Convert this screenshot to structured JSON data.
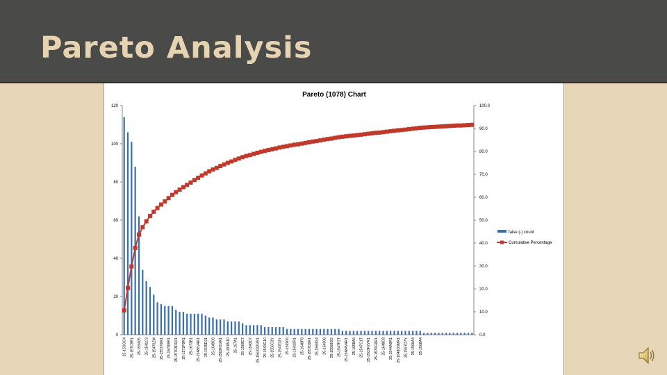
{
  "slide": {
    "title": "Pareto Analysis"
  },
  "colors": {
    "header_bg": "#4a4a49",
    "title_text": "#e6d3b1",
    "background": "#e7d6b8",
    "bar": "#3b6fb0",
    "cumulative": "#c0392b"
  },
  "icons": {
    "audio": "speaker-icon"
  },
  "chart_data": {
    "type": "bar",
    "title": "Pareto (1078) Chart",
    "ylim_left": [
      0,
      120
    ],
    "ylim_right": [
      0,
      100
    ],
    "left_ticks": [
      "0",
      "20",
      "40",
      "60",
      "80",
      "100",
      "120"
    ],
    "right_ticks": [
      "0.0",
      "10.0",
      "20.0",
      "30.0",
      "40.0",
      "50.0",
      "60.0",
      "70.0",
      "80.0",
      "90.0",
      "100.0"
    ],
    "grid": false,
    "legend_position": "right",
    "legend": [
      "false (-) count",
      "Cumulative Percentage"
    ],
    "category_labels": [
      "25-15SGC4",
      "25-157C9R1",
      "25-15S605",
      "25-1541C3",
      "25-15476ZM",
      "25-1557X6R1",
      "25-1578I9R1",
      "25-15703D1R1",
      "25-1572F9R1",
      "25-1673B1",
      "25-15486V4R1",
      "25-1539D11",
      "25-1649C8",
      "25-1563F2GR1",
      "25-153BI10",
      "25-157A1",
      "25-1569C7",
      "25-1543D7",
      "25-1563D2GR1",
      "25-1543G10",
      "25-1556C3Y",
      "25-1547D3Y",
      "25-156906",
      "25-15410R1",
      "25-1648F8",
      "25-1557D6R1",
      "25-1569G4",
      "25-164908",
      "25-15568SG",
      "25-1547F2T",
      "25-15484V4R1",
      "25-1658A6",
      "25-1547C1T",
      "25-1563F2YR1",
      "25-1570G9R1",
      "25-1648C8",
      "25-1544A9R1",
      "25-1548D3MR1",
      "25-1557D7Y",
      "25-1566A4",
      "25-1568A4"
    ],
    "label_every": 2,
    "series": [
      {
        "name": "false (-) count",
        "kind": "bar",
        "values": [
          114,
          106,
          101,
          88,
          62,
          34,
          28,
          25,
          21,
          17,
          16,
          15,
          15,
          15,
          13,
          12,
          12,
          11,
          11,
          11,
          11,
          11,
          10,
          9,
          9,
          8,
          8,
          8,
          7,
          7,
          7,
          7,
          6,
          5,
          5,
          5,
          5,
          5,
          4,
          4,
          4,
          4,
          4,
          4,
          3,
          3,
          3,
          3,
          3,
          3,
          3,
          3,
          3,
          3,
          3,
          3,
          3,
          3,
          3,
          2,
          2,
          2,
          2,
          2,
          2,
          2,
          2,
          2,
          2,
          2,
          2,
          2,
          2,
          2,
          2,
          2,
          2,
          2,
          2,
          2,
          2,
          1,
          1,
          1,
          1,
          1,
          1,
          1,
          1,
          1,
          1,
          1,
          1,
          1,
          1
        ]
      },
      {
        "name": "Cumulative Percentage",
        "kind": "line",
        "axis": "right",
        "values": [
          10.6,
          20.4,
          29.8,
          37.9,
          43.7,
          46.9,
          49.5,
          51.8,
          53.7,
          55.3,
          56.8,
          58.2,
          59.6,
          61.0,
          62.2,
          63.3,
          64.4,
          65.4,
          66.4,
          67.5,
          68.5,
          69.5,
          70.4,
          71.3,
          72.1,
          72.8,
          73.6,
          74.3,
          75.0,
          75.6,
          76.3,
          76.9,
          77.5,
          78.0,
          78.4,
          78.9,
          79.4,
          79.8,
          80.2,
          80.6,
          80.9,
          81.3,
          81.7,
          82.0,
          82.3,
          82.6,
          82.9,
          83.1,
          83.4,
          83.7,
          84.0,
          84.3,
          84.5,
          84.8,
          85.1,
          85.4,
          85.6,
          85.9,
          86.2,
          86.4,
          86.6,
          86.8,
          86.9,
          87.1,
          87.3,
          87.5,
          87.7,
          87.9,
          88.1,
          88.2,
          88.4,
          88.6,
          88.8,
          89.0,
          89.2,
          89.3,
          89.5,
          89.7,
          89.9,
          90.1,
          90.3,
          90.4,
          90.5,
          90.6,
          90.7,
          90.8,
          90.9,
          91.0,
          91.1,
          91.2,
          91.3,
          91.3,
          91.4,
          91.5,
          91.6
        ]
      }
    ]
  }
}
